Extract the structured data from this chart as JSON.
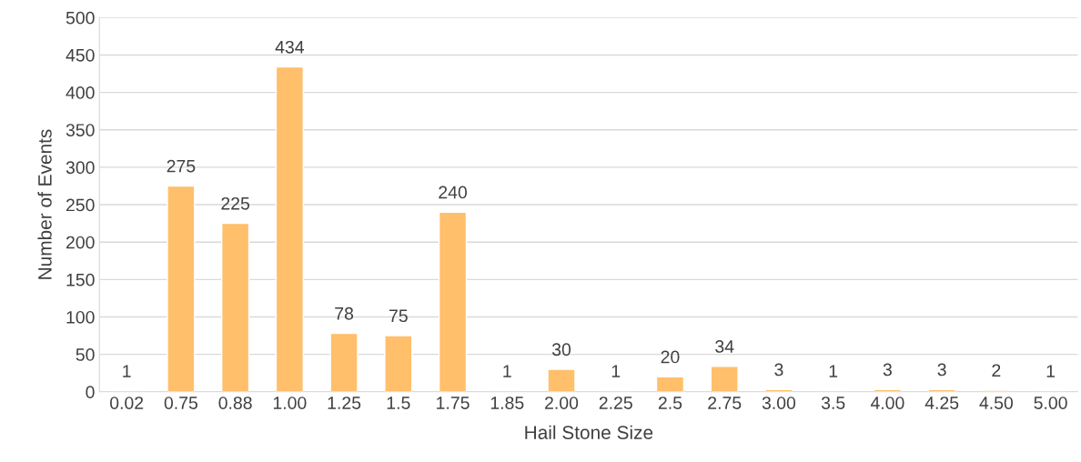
{
  "chart_data": {
    "type": "bar",
    "xlabel": "Hail Stone Size",
    "ylabel": "Number of Events",
    "categories": [
      "0.02",
      "0.75",
      "0.88",
      "1.00",
      "1.25",
      "1.5",
      "1.75",
      "1.85",
      "2.00",
      "2.25",
      "2.5",
      "2.75",
      "3.00",
      "3.5",
      "4.00",
      "4.25",
      "4.50",
      "5.00"
    ],
    "values": [
      1,
      275,
      225,
      434,
      78,
      75,
      240,
      1,
      30,
      1,
      20,
      34,
      3,
      1,
      3,
      3,
      2,
      1
    ],
    "color": "#ffbf6b",
    "ylim": [
      0,
      500
    ],
    "yticks": [
      0,
      50,
      100,
      150,
      200,
      250,
      300,
      350,
      400,
      450,
      500
    ],
    "grid": "y",
    "data_labels": true
  }
}
